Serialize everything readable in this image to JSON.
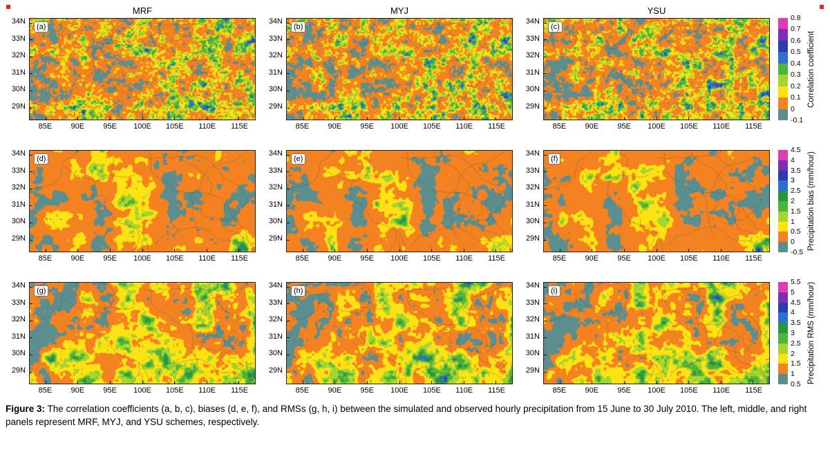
{
  "page": {
    "corner_mark_color": "#e8251f"
  },
  "figure": {
    "column_titles": [
      "MRF",
      "MYJ",
      "YSU"
    ],
    "y_ticks": [
      "34N",
      "33N",
      "32N",
      "31N",
      "30N",
      "29N"
    ],
    "x_ticks": [
      "85E",
      "90E",
      "95E",
      "100E",
      "105E",
      "110E",
      "115E"
    ],
    "rows": [
      {
        "id": "correlation",
        "panel_labels": [
          "(a)",
          "(b)",
          "(c)"
        ],
        "colorbar": {
          "label": "Correlation coefficient",
          "ticks": [
            "0.8",
            "0.7",
            "0.6",
            "0.5",
            "0.4",
            "0.3",
            "0.2",
            "0.1",
            "0",
            "-0.1"
          ],
          "colors_top_to_bottom": [
            "#de3cb2",
            "#7d2fb3",
            "#2b3cb0",
            "#2f6fd0",
            "#4eb43a",
            "#a6d52f",
            "#ffe211",
            "#f58221",
            "#5b8f8f"
          ]
        }
      },
      {
        "id": "bias",
        "panel_labels": [
          "(d)",
          "(e)",
          "(f)"
        ],
        "colorbar": {
          "label": "Precipitation bias (mm/hour)",
          "ticks": [
            "4.5",
            "4",
            "3.5",
            "3",
            "2.5",
            "2",
            "1.5",
            "1",
            "0.5",
            "0",
            "-0.5"
          ],
          "colors_top_to_bottom": [
            "#de3cb2",
            "#7d2fb3",
            "#2b3cb0",
            "#2f6fd0",
            "#27963c",
            "#4eb43a",
            "#a6d52f",
            "#ffe211",
            "#f58221",
            "#5b8f8f"
          ]
        }
      },
      {
        "id": "rms",
        "panel_labels": [
          "(g)",
          "(h)",
          "(i)"
        ],
        "colorbar": {
          "label": "Precipitation RMS (mm/hour)",
          "ticks": [
            "5.5",
            "5",
            "4.5",
            "4",
            "3.5",
            "3",
            "2.5",
            "2",
            "1.5",
            "1",
            "0.5"
          ],
          "colors_top_to_bottom": [
            "#de3cb2",
            "#7d2fb3",
            "#2b3cb0",
            "#2f6fd0",
            "#27963c",
            "#4eb43a",
            "#a6d52f",
            "#ffe211",
            "#f58221",
            "#5b8f8f"
          ]
        }
      }
    ]
  },
  "caption": {
    "label": "Figure 3:",
    "text": "The correlation coefficients (a, b, c), biases (d, e, f), and RMSs (g, h, i) between the simulated and observed hourly precipitation from 15 June to 30 July 2010. The left, middle, and right panels represent MRF, MYJ, and YSU schemes, respectively."
  },
  "chart_data": [
    {
      "type": "heatmap",
      "row": "top",
      "quantity": "Correlation coefficient",
      "panels": [
        {
          "label": "(a)",
          "scheme": "MRF"
        },
        {
          "label": "(b)",
          "scheme": "MYJ"
        },
        {
          "label": "(c)",
          "scheme": "YSU"
        }
      ],
      "x_ticks": [
        "85E",
        "90E",
        "95E",
        "100E",
        "105E",
        "110E",
        "115E"
      ],
      "y_ticks": [
        "34N",
        "33N",
        "32N",
        "31N",
        "30N",
        "29N"
      ],
      "colorbar": {
        "label": "Correlation coefficient",
        "tick_values": [
          -0.1,
          0,
          0.1,
          0.2,
          0.3,
          0.4,
          0.5,
          0.6,
          0.7,
          0.8
        ],
        "colors_low_to_high": [
          "#5b8f8f",
          "#f58221",
          "#ffe211",
          "#a6d52f",
          "#4eb43a",
          "#2f6fd0",
          "#2b3cb0",
          "#7d2fb3",
          "#de3cb2"
        ]
      },
      "pattern_summary": "Dominantly 0-0.1 (orange) with dense speckled patches of 0.1-0.4 (yellow/green); larger green-blue areas (0.2-0.5) east of about 105E and scattered negative (teal, -0.1-0) patches; very similar in all three schemes."
    },
    {
      "type": "heatmap",
      "row": "middle",
      "quantity": "Precipitation bias (mm/hour)",
      "panels": [
        {
          "label": "(d)",
          "scheme": "MRF"
        },
        {
          "label": "(e)",
          "scheme": "MYJ"
        },
        {
          "label": "(f)",
          "scheme": "YSU"
        }
      ],
      "x_ticks": [
        "85E",
        "90E",
        "95E",
        "100E",
        "105E",
        "110E",
        "115E"
      ],
      "y_ticks": [
        "34N",
        "33N",
        "32N",
        "31N",
        "30N",
        "29N"
      ],
      "colorbar": {
        "label": "Precipitation bias (mm/hour)",
        "tick_values": [
          -0.5,
          0,
          0.5,
          1,
          1.5,
          2,
          2.5,
          3,
          3.5,
          4,
          4.5
        ],
        "colors_low_to_high": [
          "#5b8f8f",
          "#f58221",
          "#ffe211",
          "#a6d52f",
          "#4eb43a",
          "#27963c",
          "#2f6fd0",
          "#2b3cb0",
          "#7d2fb3",
          "#de3cb2"
        ]
      },
      "pattern_summary": "Mostly 0-0.5 mm/hour (orange) everywhere, with scattered slightly negative (teal) areas and yellow/green patches (0.5-2 mm/hour) mainly south of 31N and east of 100E; MYJ (e) is the cleanest orange field."
    },
    {
      "type": "heatmap",
      "row": "bottom",
      "quantity": "Precipitation RMS (mm/hour)",
      "panels": [
        {
          "label": "(g)",
          "scheme": "MRF"
        },
        {
          "label": "(h)",
          "scheme": "MYJ"
        },
        {
          "label": "(i)",
          "scheme": "YSU"
        }
      ],
      "x_ticks": [
        "85E",
        "90E",
        "95E",
        "100E",
        "105E",
        "110E",
        "115E"
      ],
      "y_ticks": [
        "34N",
        "33N",
        "32N",
        "31N",
        "30N",
        "29N"
      ],
      "colorbar": {
        "label": "Precipitation RMS (mm/hour)",
        "tick_values": [
          0.5,
          1,
          1.5,
          2,
          2.5,
          3,
          3.5,
          4,
          4.5,
          5,
          5.5
        ],
        "colors_low_to_high": [
          "#5b8f8f",
          "#f58221",
          "#ffe211",
          "#a6d52f",
          "#4eb43a",
          "#27963c",
          "#2f6fd0",
          "#2b3cb0",
          "#7d2fb3",
          "#de3cb2"
        ]
      },
      "pattern_summary": "Mix of 1-2 mm/hour (orange/yellow) with broad yellow-green areas (1.5-3) in the centre and east, low teal (0.5-1) band along the western edge, and scattered blue spots (>3) in the southeast."
    }
  ]
}
